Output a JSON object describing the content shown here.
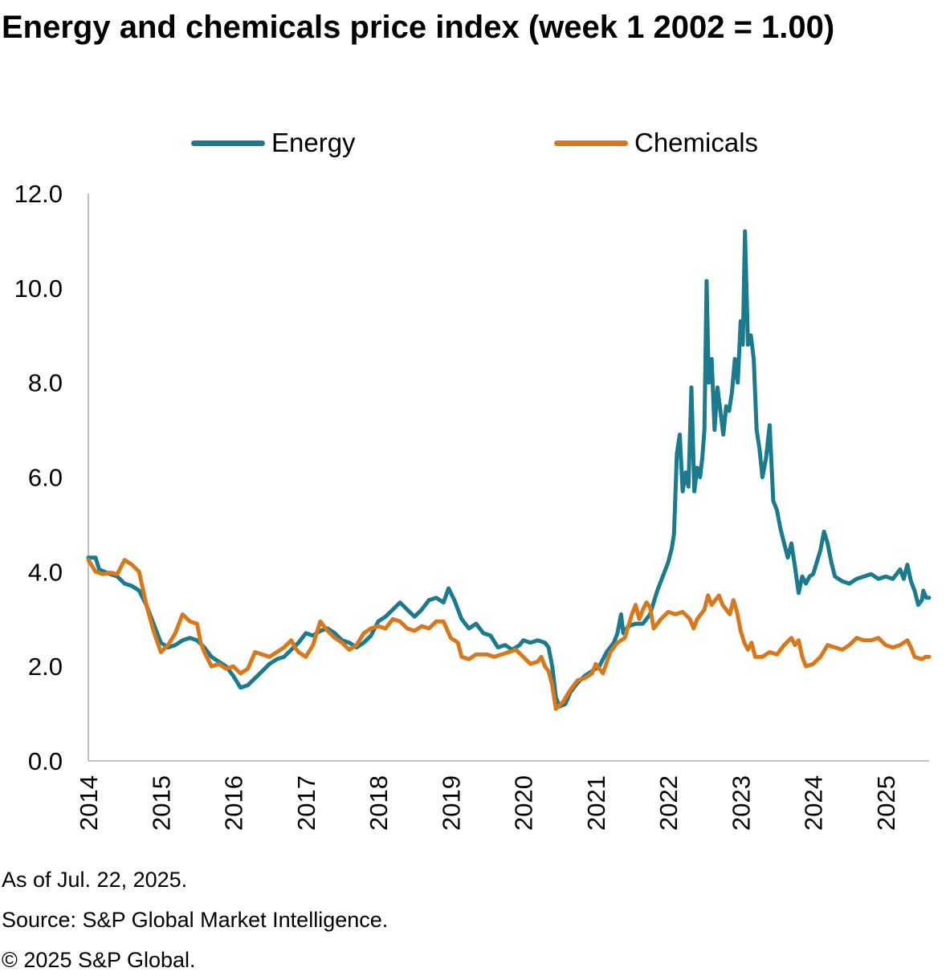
{
  "chart_data": {
    "type": "line",
    "title": "Energy and chemicals price index (week 1 2002 = 1.00)",
    "xlabel": "",
    "ylabel": "",
    "ylim": [
      0,
      12
    ],
    "xlim": [
      2014,
      2025.6
    ],
    "yticks": [
      "0.0",
      "2.0",
      "4.0",
      "6.0",
      "8.0",
      "10.0",
      "12.0"
    ],
    "xticks": [
      "2014",
      "2015",
      "2016",
      "2017",
      "2018",
      "2019",
      "2020",
      "2021",
      "2022",
      "2023",
      "2024",
      "2025"
    ],
    "legend_position": "top",
    "grid": false,
    "series": [
      {
        "name": "Energy",
        "color": "#1a7a8e",
        "points": [
          [
            2014.0,
            4.3
          ],
          [
            2014.1,
            4.3
          ],
          [
            2014.15,
            4.05
          ],
          [
            2014.3,
            3.95
          ],
          [
            2014.4,
            3.9
          ],
          [
            2014.5,
            3.75
          ],
          [
            2014.6,
            3.7
          ],
          [
            2014.7,
            3.6
          ],
          [
            2014.8,
            3.3
          ],
          [
            2014.9,
            2.9
          ],
          [
            2015.0,
            2.5
          ],
          [
            2015.1,
            2.4
          ],
          [
            2015.2,
            2.45
          ],
          [
            2015.3,
            2.55
          ],
          [
            2015.4,
            2.6
          ],
          [
            2015.5,
            2.55
          ],
          [
            2015.6,
            2.4
          ],
          [
            2015.7,
            2.2
          ],
          [
            2015.8,
            2.1
          ],
          [
            2015.9,
            2.0
          ],
          [
            2016.0,
            1.8
          ],
          [
            2016.1,
            1.55
          ],
          [
            2016.2,
            1.6
          ],
          [
            2016.3,
            1.75
          ],
          [
            2016.4,
            1.9
          ],
          [
            2016.5,
            2.05
          ],
          [
            2016.6,
            2.15
          ],
          [
            2016.7,
            2.2
          ],
          [
            2016.8,
            2.35
          ],
          [
            2016.9,
            2.5
          ],
          [
            2017.0,
            2.7
          ],
          [
            2017.1,
            2.65
          ],
          [
            2017.2,
            2.75
          ],
          [
            2017.3,
            2.8
          ],
          [
            2017.4,
            2.7
          ],
          [
            2017.5,
            2.55
          ],
          [
            2017.6,
            2.5
          ],
          [
            2017.7,
            2.4
          ],
          [
            2017.8,
            2.5
          ],
          [
            2017.9,
            2.65
          ],
          [
            2018.0,
            2.95
          ],
          [
            2018.1,
            3.05
          ],
          [
            2018.2,
            3.2
          ],
          [
            2018.3,
            3.35
          ],
          [
            2018.4,
            3.2
          ],
          [
            2018.5,
            3.05
          ],
          [
            2018.6,
            3.2
          ],
          [
            2018.7,
            3.4
          ],
          [
            2018.8,
            3.45
          ],
          [
            2018.9,
            3.35
          ],
          [
            2018.97,
            3.65
          ],
          [
            2019.05,
            3.4
          ],
          [
            2019.15,
            3.0
          ],
          [
            2019.25,
            2.8
          ],
          [
            2019.35,
            2.9
          ],
          [
            2019.45,
            2.7
          ],
          [
            2019.55,
            2.65
          ],
          [
            2019.65,
            2.4
          ],
          [
            2019.75,
            2.45
          ],
          [
            2019.85,
            2.35
          ],
          [
            2019.95,
            2.45
          ],
          [
            2020.0,
            2.55
          ],
          [
            2020.1,
            2.5
          ],
          [
            2020.2,
            2.55
          ],
          [
            2020.3,
            2.5
          ],
          [
            2020.35,
            2.4
          ],
          [
            2020.4,
            2.0
          ],
          [
            2020.45,
            1.35
          ],
          [
            2020.5,
            1.15
          ],
          [
            2020.58,
            1.2
          ],
          [
            2020.65,
            1.45
          ],
          [
            2020.75,
            1.65
          ],
          [
            2020.85,
            1.8
          ],
          [
            2020.95,
            1.9
          ],
          [
            2021.05,
            2.0
          ],
          [
            2021.15,
            2.3
          ],
          [
            2021.25,
            2.5
          ],
          [
            2021.3,
            2.7
          ],
          [
            2021.35,
            3.1
          ],
          [
            2021.38,
            2.7
          ],
          [
            2021.45,
            2.85
          ],
          [
            2021.55,
            2.9
          ],
          [
            2021.65,
            2.9
          ],
          [
            2021.75,
            3.1
          ],
          [
            2021.85,
            3.6
          ],
          [
            2021.95,
            4.0
          ],
          [
            2022.0,
            4.2
          ],
          [
            2022.05,
            4.5
          ],
          [
            2022.08,
            4.8
          ],
          [
            2022.12,
            6.5
          ],
          [
            2022.16,
            6.9
          ],
          [
            2022.2,
            5.7
          ],
          [
            2022.24,
            6.1
          ],
          [
            2022.28,
            5.8
          ],
          [
            2022.32,
            7.9
          ],
          [
            2022.36,
            5.7
          ],
          [
            2022.4,
            6.2
          ],
          [
            2022.44,
            6.0
          ],
          [
            2022.47,
            6.4
          ],
          [
            2022.5,
            7.0
          ],
          [
            2022.53,
            10.15
          ],
          [
            2022.56,
            8.0
          ],
          [
            2022.6,
            8.5
          ],
          [
            2022.64,
            7.0
          ],
          [
            2022.68,
            7.9
          ],
          [
            2022.72,
            7.4
          ],
          [
            2022.76,
            6.9
          ],
          [
            2022.8,
            7.5
          ],
          [
            2022.84,
            7.4
          ],
          [
            2022.88,
            7.8
          ],
          [
            2022.92,
            8.5
          ],
          [
            2022.96,
            8.0
          ],
          [
            2023.0,
            9.3
          ],
          [
            2023.03,
            8.8
          ],
          [
            2023.06,
            11.2
          ],
          [
            2023.1,
            8.8
          ],
          [
            2023.14,
            9.0
          ],
          [
            2023.18,
            8.5
          ],
          [
            2023.22,
            7.0
          ],
          [
            2023.26,
            6.6
          ],
          [
            2023.3,
            6.0
          ],
          [
            2023.35,
            6.4
          ],
          [
            2023.4,
            7.1
          ],
          [
            2023.45,
            5.5
          ],
          [
            2023.5,
            5.3
          ],
          [
            2023.55,
            4.9
          ],
          [
            2023.6,
            4.6
          ],
          [
            2023.65,
            4.3
          ],
          [
            2023.7,
            4.6
          ],
          [
            2023.75,
            4.1
          ],
          [
            2023.8,
            3.55
          ],
          [
            2023.85,
            3.9
          ],
          [
            2023.9,
            3.75
          ],
          [
            2023.95,
            3.9
          ],
          [
            2024.0,
            3.95
          ],
          [
            2024.05,
            4.2
          ],
          [
            2024.1,
            4.45
          ],
          [
            2024.15,
            4.85
          ],
          [
            2024.2,
            4.6
          ],
          [
            2024.25,
            4.2
          ],
          [
            2024.3,
            3.9
          ],
          [
            2024.4,
            3.8
          ],
          [
            2024.5,
            3.75
          ],
          [
            2024.6,
            3.85
          ],
          [
            2024.7,
            3.9
          ],
          [
            2024.8,
            3.95
          ],
          [
            2024.9,
            3.85
          ],
          [
            2025.0,
            3.9
          ],
          [
            2025.1,
            3.85
          ],
          [
            2025.2,
            4.05
          ],
          [
            2025.25,
            3.85
          ],
          [
            2025.3,
            4.15
          ],
          [
            2025.35,
            3.8
          ],
          [
            2025.4,
            3.6
          ],
          [
            2025.45,
            3.3
          ],
          [
            2025.5,
            3.4
          ],
          [
            2025.52,
            3.6
          ],
          [
            2025.56,
            3.45
          ],
          [
            2025.6,
            3.45
          ]
        ]
      },
      {
        "name": "Chemicals",
        "color": "#d9771a",
        "points": [
          [
            2014.0,
            4.25
          ],
          [
            2014.1,
            4.0
          ],
          [
            2014.2,
            3.95
          ],
          [
            2014.3,
            3.98
          ],
          [
            2014.4,
            3.95
          ],
          [
            2014.5,
            4.25
          ],
          [
            2014.6,
            4.15
          ],
          [
            2014.7,
            4.0
          ],
          [
            2014.8,
            3.3
          ],
          [
            2014.9,
            2.75
          ],
          [
            2015.0,
            2.3
          ],
          [
            2015.1,
            2.45
          ],
          [
            2015.2,
            2.7
          ],
          [
            2015.3,
            3.1
          ],
          [
            2015.4,
            2.95
          ],
          [
            2015.5,
            2.9
          ],
          [
            2015.55,
            2.5
          ],
          [
            2015.6,
            2.3
          ],
          [
            2015.7,
            2.0
          ],
          [
            2015.8,
            2.05
          ],
          [
            2015.9,
            1.95
          ],
          [
            2016.0,
            2.0
          ],
          [
            2016.1,
            1.85
          ],
          [
            2016.2,
            1.95
          ],
          [
            2016.3,
            2.3
          ],
          [
            2016.4,
            2.25
          ],
          [
            2016.5,
            2.2
          ],
          [
            2016.6,
            2.3
          ],
          [
            2016.7,
            2.4
          ],
          [
            2016.8,
            2.55
          ],
          [
            2016.85,
            2.4
          ],
          [
            2016.9,
            2.3
          ],
          [
            2017.0,
            2.2
          ],
          [
            2017.1,
            2.45
          ],
          [
            2017.2,
            2.95
          ],
          [
            2017.3,
            2.75
          ],
          [
            2017.4,
            2.6
          ],
          [
            2017.5,
            2.5
          ],
          [
            2017.6,
            2.35
          ],
          [
            2017.7,
            2.45
          ],
          [
            2017.8,
            2.7
          ],
          [
            2017.9,
            2.8
          ],
          [
            2018.0,
            2.85
          ],
          [
            2018.1,
            2.8
          ],
          [
            2018.2,
            3.0
          ],
          [
            2018.3,
            2.95
          ],
          [
            2018.4,
            2.8
          ],
          [
            2018.5,
            2.75
          ],
          [
            2018.6,
            2.85
          ],
          [
            2018.7,
            2.8
          ],
          [
            2018.8,
            2.95
          ],
          [
            2018.9,
            2.95
          ],
          [
            2019.0,
            2.6
          ],
          [
            2019.1,
            2.5
          ],
          [
            2019.15,
            2.2
          ],
          [
            2019.25,
            2.15
          ],
          [
            2019.35,
            2.25
          ],
          [
            2019.5,
            2.25
          ],
          [
            2019.6,
            2.2
          ],
          [
            2019.7,
            2.25
          ],
          [
            2019.8,
            2.3
          ],
          [
            2019.9,
            2.35
          ],
          [
            2020.0,
            2.2
          ],
          [
            2020.1,
            2.05
          ],
          [
            2020.2,
            2.1
          ],
          [
            2020.25,
            2.2
          ],
          [
            2020.3,
            2.0
          ],
          [
            2020.35,
            1.9
          ],
          [
            2020.4,
            1.6
          ],
          [
            2020.45,
            1.1
          ],
          [
            2020.55,
            1.25
          ],
          [
            2020.65,
            1.5
          ],
          [
            2020.75,
            1.7
          ],
          [
            2020.85,
            1.75
          ],
          [
            2020.95,
            1.85
          ],
          [
            2021.0,
            2.05
          ],
          [
            2021.1,
            1.85
          ],
          [
            2021.2,
            2.3
          ],
          [
            2021.3,
            2.5
          ],
          [
            2021.4,
            2.6
          ],
          [
            2021.5,
            3.1
          ],
          [
            2021.55,
            3.3
          ],
          [
            2021.6,
            3.0
          ],
          [
            2021.65,
            3.2
          ],
          [
            2021.7,
            3.35
          ],
          [
            2021.75,
            3.25
          ],
          [
            2021.8,
            2.8
          ],
          [
            2021.9,
            3.0
          ],
          [
            2022.0,
            3.15
          ],
          [
            2022.1,
            3.1
          ],
          [
            2022.2,
            3.15
          ],
          [
            2022.3,
            3.0
          ],
          [
            2022.35,
            2.8
          ],
          [
            2022.4,
            3.0
          ],
          [
            2022.5,
            3.2
          ],
          [
            2022.55,
            3.5
          ],
          [
            2022.6,
            3.3
          ],
          [
            2022.65,
            3.4
          ],
          [
            2022.7,
            3.5
          ],
          [
            2022.75,
            3.3
          ],
          [
            2022.8,
            3.2
          ],
          [
            2022.85,
            3.1
          ],
          [
            2022.9,
            3.4
          ],
          [
            2022.95,
            3.15
          ],
          [
            2023.0,
            2.75
          ],
          [
            2023.05,
            2.5
          ],
          [
            2023.1,
            2.35
          ],
          [
            2023.15,
            2.5
          ],
          [
            2023.2,
            2.2
          ],
          [
            2023.3,
            2.2
          ],
          [
            2023.4,
            2.3
          ],
          [
            2023.5,
            2.25
          ],
          [
            2023.6,
            2.45
          ],
          [
            2023.7,
            2.6
          ],
          [
            2023.75,
            2.45
          ],
          [
            2023.8,
            2.55
          ],
          [
            2023.85,
            2.2
          ],
          [
            2023.9,
            2.0
          ],
          [
            2024.0,
            2.05
          ],
          [
            2024.1,
            2.2
          ],
          [
            2024.2,
            2.45
          ],
          [
            2024.3,
            2.4
          ],
          [
            2024.4,
            2.35
          ],
          [
            2024.5,
            2.45
          ],
          [
            2024.6,
            2.6
          ],
          [
            2024.7,
            2.55
          ],
          [
            2024.8,
            2.55
          ],
          [
            2024.9,
            2.6
          ],
          [
            2025.0,
            2.45
          ],
          [
            2025.1,
            2.4
          ],
          [
            2025.2,
            2.45
          ],
          [
            2025.3,
            2.55
          ],
          [
            2025.35,
            2.4
          ],
          [
            2025.4,
            2.2
          ],
          [
            2025.5,
            2.15
          ],
          [
            2025.55,
            2.2
          ],
          [
            2025.6,
            2.2
          ]
        ]
      }
    ]
  },
  "notes": {
    "as_of": "As of Jul. 22, 2025.",
    "source": "Source: S&P Global Market Intelligence.",
    "copyright": "© 2025 S&P Global."
  }
}
